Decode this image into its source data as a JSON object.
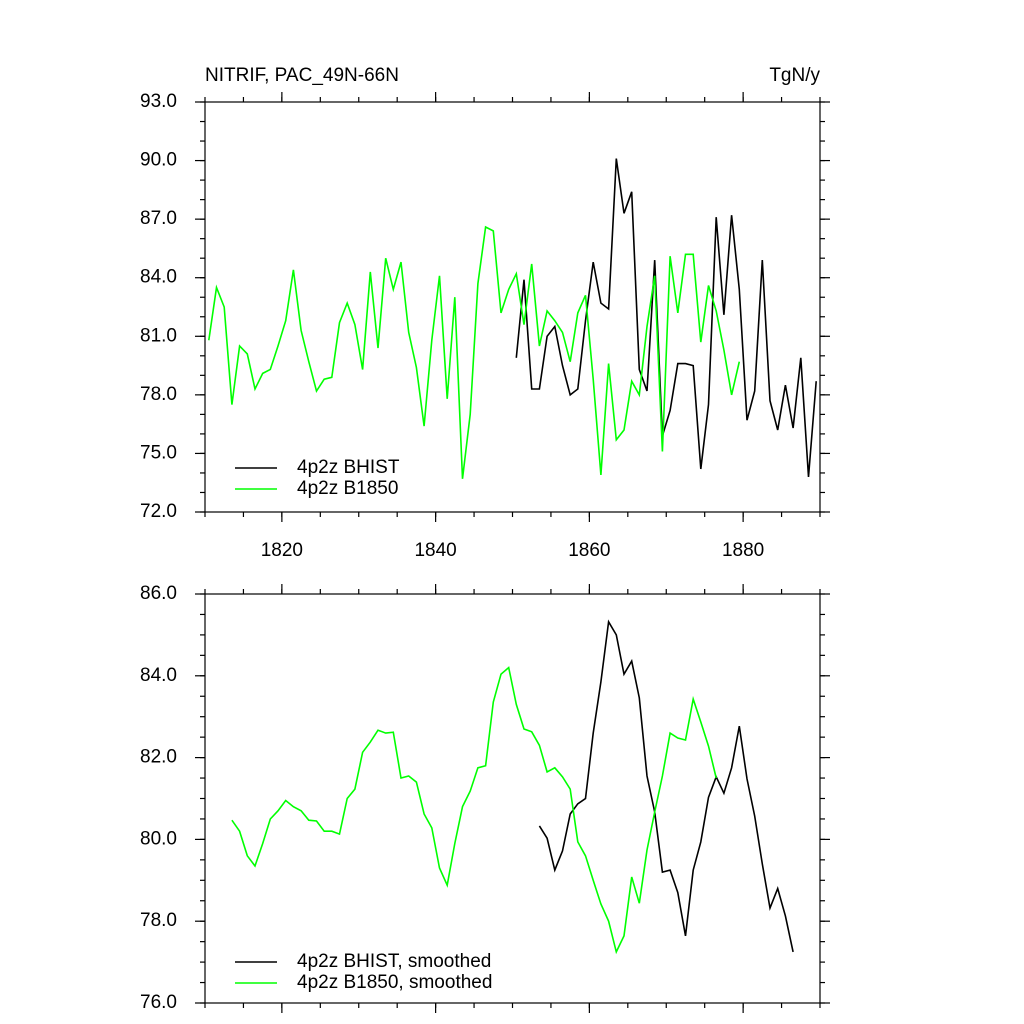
{
  "chart_data": [
    {
      "type": "line",
      "title": "NITRIF, PAC_49N-66N",
      "subtitle": "TgN/y",
      "xlim": [
        1810,
        1890
      ],
      "xticks": [
        1820,
        1840,
        1860,
        1880
      ],
      "xtick_labels": true,
      "ylim": [
        72,
        93
      ],
      "yticks": [
        {
          "value": 72,
          "label": "72.0"
        },
        {
          "value": 75,
          "label": "75.0"
        },
        {
          "value": 78,
          "label": "78.0"
        },
        {
          "value": 81,
          "label": "81.0"
        },
        {
          "value": 84,
          "label": "84.0"
        },
        {
          "value": 87,
          "label": "87.0"
        },
        {
          "value": 90,
          "label": "90.0"
        },
        {
          "value": 93,
          "label": "93.0"
        }
      ],
      "legend": "lower left",
      "series": [
        {
          "name": "4p2z BHIST",
          "color": "#000000",
          "x": [
            1850.5,
            1851.5,
            1852.5,
            1853.5,
            1854.5,
            1855.5,
            1856.5,
            1857.5,
            1858.5,
            1859.5,
            1860.5,
            1861.5,
            1862.5,
            1863.5,
            1864.5,
            1865.5,
            1866.5,
            1867.5,
            1868.5,
            1869.5,
            1870.5,
            1871.5,
            1872.5,
            1873.5,
            1874.5,
            1875.5,
            1876.5,
            1877.5,
            1878.5,
            1879.5,
            1880.5,
            1881.5,
            1882.5,
            1883.5,
            1884.5,
            1885.5,
            1886.5,
            1887.5,
            1888.5,
            1889.5
          ],
          "values": [
            79.9,
            83.9,
            78.3,
            78.3,
            81.0,
            81.5,
            79.5,
            78.0,
            78.3,
            81.8,
            84.8,
            82.7,
            82.4,
            90.1,
            87.3,
            88.4,
            79.3,
            78.2,
            84.9,
            75.9,
            77.2,
            79.6,
            79.6,
            79.5,
            74.2,
            77.5,
            87.1,
            82.1,
            87.2,
            83.4,
            76.7,
            78.2,
            84.9,
            77.7,
            76.2,
            78.5,
            76.3,
            79.9,
            73.8,
            78.7
          ]
        },
        {
          "name": "4p2z B1850",
          "color": "#00ff00",
          "x": [
            1810.5,
            1811.5,
            1812.5,
            1813.5,
            1814.5,
            1815.5,
            1816.5,
            1817.5,
            1818.5,
            1819.5,
            1820.5,
            1821.5,
            1822.5,
            1823.5,
            1824.5,
            1825.5,
            1826.5,
            1827.5,
            1828.5,
            1829.5,
            1830.5,
            1831.5,
            1832.5,
            1833.5,
            1834.5,
            1835.5,
            1836.5,
            1837.5,
            1838.5,
            1839.5,
            1840.5,
            1841.5,
            1842.5,
            1843.5,
            1844.5,
            1845.5,
            1846.5,
            1847.5,
            1848.5,
            1849.5,
            1850.5,
            1851.5,
            1852.5,
            1853.5,
            1854.5,
            1855.5,
            1856.5,
            1857.5,
            1858.5,
            1859.5,
            1860.5,
            1861.5,
            1862.5,
            1863.5,
            1864.5,
            1865.5,
            1866.5,
            1867.5,
            1868.5,
            1869.5,
            1870.5,
            1871.5,
            1872.5,
            1873.5,
            1874.5,
            1875.5,
            1876.5,
            1877.5,
            1878.5,
            1879.5
          ],
          "values": [
            80.8,
            83.5,
            82.5,
            77.5,
            80.5,
            80.1,
            78.3,
            79.1,
            79.3,
            80.5,
            81.8,
            84.4,
            81.3,
            79.7,
            78.2,
            78.8,
            78.9,
            81.7,
            82.7,
            81.6,
            79.3,
            84.3,
            80.4,
            85.0,
            83.4,
            84.8,
            81.2,
            79.4,
            76.4,
            80.8,
            84.1,
            77.8,
            83.0,
            73.7,
            77.0,
            83.7,
            86.6,
            86.4,
            82.2,
            83.4,
            84.2,
            81.6,
            84.7,
            80.5,
            82.3,
            81.8,
            81.2,
            79.7,
            82.2,
            83.1,
            78.8,
            73.9,
            79.6,
            75.7,
            76.2,
            78.7,
            78.0,
            81.5,
            84.1,
            75.1,
            85.1,
            82.2,
            85.2,
            85.2,
            80.7,
            83.6,
            82.3,
            80.3,
            78.0,
            79.7
          ]
        }
      ]
    },
    {
      "type": "line",
      "xlim": [
        1810,
        1890
      ],
      "xticks": [
        1820,
        1840,
        1860,
        1880
      ],
      "xtick_labels": false,
      "ylim": [
        76,
        86
      ],
      "yticks": [
        {
          "value": 76,
          "label": "76.0"
        },
        {
          "value": 78,
          "label": "78.0"
        },
        {
          "value": 80,
          "label": "80.0"
        },
        {
          "value": 82,
          "label": "82.0"
        },
        {
          "value": 84,
          "label": "84.0"
        },
        {
          "value": 86,
          "label": "86.0"
        }
      ],
      "legend": "lower left",
      "series": [
        {
          "name": "4p2z BHIST, smoothed",
          "color": "#000000",
          "x": [
            1853.5,
            1854.5,
            1855.5,
            1856.5,
            1857.5,
            1858.5,
            1859.5,
            1860.5,
            1861.5,
            1862.5,
            1863.5,
            1864.5,
            1865.5,
            1866.5,
            1867.5,
            1868.5,
            1869.5,
            1870.5,
            1871.5,
            1872.5,
            1873.5,
            1874.5,
            1875.5,
            1876.5,
            1877.5,
            1878.5,
            1879.5,
            1880.5,
            1881.5,
            1882.5,
            1883.5,
            1884.5,
            1885.5,
            1886.5
          ],
          "values": [
            80.33,
            80.03,
            79.25,
            79.72,
            80.62,
            80.87,
            81.0,
            82.6,
            83.85,
            85.32,
            85.0,
            84.04,
            84.36,
            83.46,
            81.55,
            80.67,
            79.2,
            79.25,
            78.7,
            77.64,
            79.25,
            79.94,
            81.03,
            81.53,
            81.13,
            81.75,
            82.77,
            81.48,
            80.57,
            79.4,
            78.32,
            78.8,
            78.13,
            77.25
          ]
        },
        {
          "name": "4p2z B1850, smoothed",
          "color": "#00ff00",
          "x": [
            1813.5,
            1814.5,
            1815.5,
            1816.5,
            1817.5,
            1818.5,
            1819.5,
            1820.5,
            1821.5,
            1822.5,
            1823.5,
            1824.5,
            1825.5,
            1826.5,
            1827.5,
            1828.5,
            1829.5,
            1830.5,
            1831.5,
            1832.5,
            1833.5,
            1834.5,
            1835.5,
            1836.5,
            1837.5,
            1838.5,
            1839.5,
            1840.5,
            1841.5,
            1842.5,
            1843.5,
            1844.5,
            1845.5,
            1846.5,
            1847.5,
            1848.5,
            1849.5,
            1850.5,
            1851.5,
            1852.5,
            1853.5,
            1854.5,
            1855.5,
            1856.5,
            1857.5,
            1858.5,
            1859.5,
            1860.5,
            1861.5,
            1862.5,
            1863.5,
            1864.5,
            1865.5,
            1866.5,
            1867.5,
            1868.5,
            1869.5,
            1870.5,
            1871.5,
            1872.5,
            1873.5,
            1874.5,
            1875.5,
            1876.5
          ],
          "values": [
            80.47,
            80.2,
            79.6,
            79.35,
            79.9,
            80.5,
            80.7,
            80.95,
            80.8,
            80.7,
            80.47,
            80.45,
            80.2,
            80.2,
            80.13,
            81.0,
            81.23,
            82.13,
            82.38,
            82.67,
            82.6,
            82.62,
            81.5,
            81.55,
            81.4,
            80.62,
            80.28,
            79.3,
            78.88,
            79.9,
            80.8,
            81.18,
            81.75,
            81.8,
            83.36,
            84.04,
            84.2,
            83.3,
            82.7,
            82.63,
            82.3,
            81.65,
            81.75,
            81.53,
            81.23,
            79.94,
            79.6,
            79.0,
            78.42,
            78.0,
            77.25,
            77.64,
            79.08,
            78.44,
            79.74,
            80.67,
            81.55,
            82.6,
            82.48,
            82.43,
            83.43,
            82.87,
            82.28,
            81.5
          ]
        }
      ]
    }
  ]
}
